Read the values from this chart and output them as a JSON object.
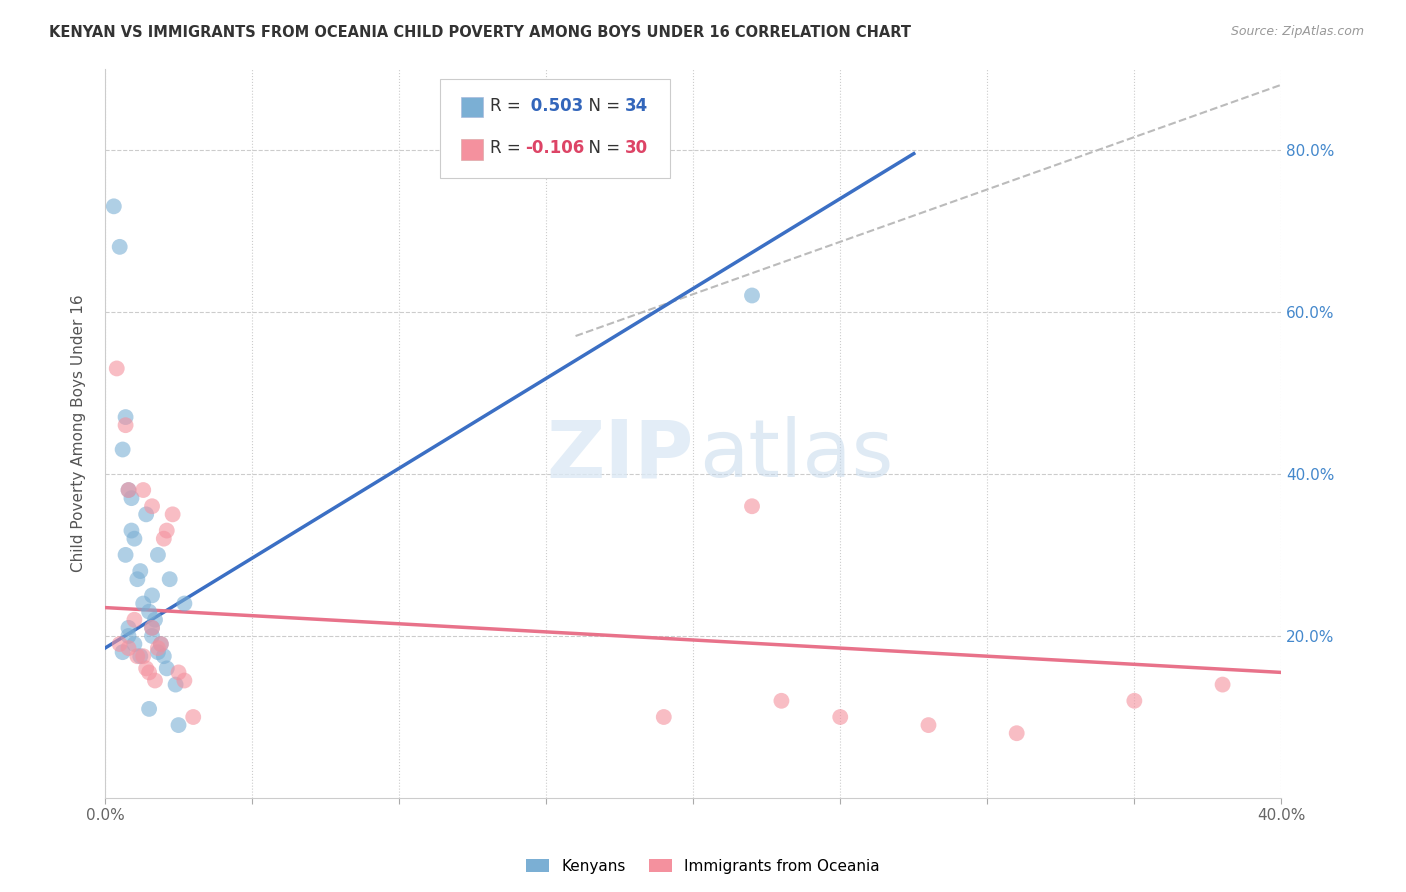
{
  "title": "KENYAN VS IMMIGRANTS FROM OCEANIA CHILD POVERTY AMONG BOYS UNDER 16 CORRELATION CHART",
  "source": "Source: ZipAtlas.com",
  "ylabel": "Child Poverty Among Boys Under 16",
  "xlim": [
    0.0,
    0.4
  ],
  "ylim": [
    0.0,
    0.9
  ],
  "x_ticks": [
    0.0,
    0.05,
    0.1,
    0.15,
    0.2,
    0.25,
    0.3,
    0.35,
    0.4
  ],
  "y_ticks_right": [
    0.2,
    0.4,
    0.6,
    0.8
  ],
  "blue_R": "0.503",
  "blue_N": "34",
  "pink_R": "-0.106",
  "pink_N": "30",
  "legend_label_blue": "Kenyans",
  "legend_label_pink": "Immigrants from Oceania",
  "blue_color": "#7BAFD4",
  "pink_color": "#F4919E",
  "blue_line_color": "#3B6FC4",
  "pink_line_color": "#E8728A",
  "diagonal_color": "#BBBBBB",
  "blue_points_x": [
    0.003,
    0.005,
    0.006,
    0.006,
    0.007,
    0.007,
    0.008,
    0.008,
    0.008,
    0.009,
    0.009,
    0.01,
    0.01,
    0.011,
    0.012,
    0.012,
    0.013,
    0.014,
    0.015,
    0.015,
    0.016,
    0.016,
    0.016,
    0.017,
    0.018,
    0.018,
    0.019,
    0.02,
    0.021,
    0.022,
    0.024,
    0.025,
    0.027,
    0.22
  ],
  "blue_points_y": [
    0.73,
    0.68,
    0.43,
    0.18,
    0.47,
    0.3,
    0.38,
    0.21,
    0.2,
    0.37,
    0.33,
    0.32,
    0.19,
    0.27,
    0.28,
    0.175,
    0.24,
    0.35,
    0.23,
    0.11,
    0.25,
    0.21,
    0.2,
    0.22,
    0.3,
    0.18,
    0.19,
    0.175,
    0.16,
    0.27,
    0.14,
    0.09,
    0.24,
    0.62
  ],
  "pink_points_x": [
    0.004,
    0.005,
    0.007,
    0.008,
    0.008,
    0.01,
    0.011,
    0.013,
    0.014,
    0.015,
    0.016,
    0.017,
    0.018,
    0.019,
    0.02,
    0.021,
    0.023,
    0.025,
    0.027,
    0.03,
    0.013,
    0.016,
    0.19,
    0.22,
    0.23,
    0.25,
    0.28,
    0.31,
    0.35,
    0.38
  ],
  "pink_points_y": [
    0.53,
    0.19,
    0.46,
    0.38,
    0.185,
    0.22,
    0.175,
    0.175,
    0.16,
    0.155,
    0.21,
    0.145,
    0.185,
    0.19,
    0.32,
    0.33,
    0.35,
    0.155,
    0.145,
    0.1,
    0.38,
    0.36,
    0.1,
    0.36,
    0.12,
    0.1,
    0.09,
    0.08,
    0.12,
    0.14
  ],
  "blue_line_x": [
    0.0,
    0.275
  ],
  "blue_line_y": [
    0.185,
    0.795
  ],
  "pink_line_x": [
    0.0,
    0.4
  ],
  "pink_line_y": [
    0.235,
    0.155
  ],
  "diag_line_x": [
    0.16,
    0.4
  ],
  "diag_line_y": [
    0.57,
    0.88
  ]
}
